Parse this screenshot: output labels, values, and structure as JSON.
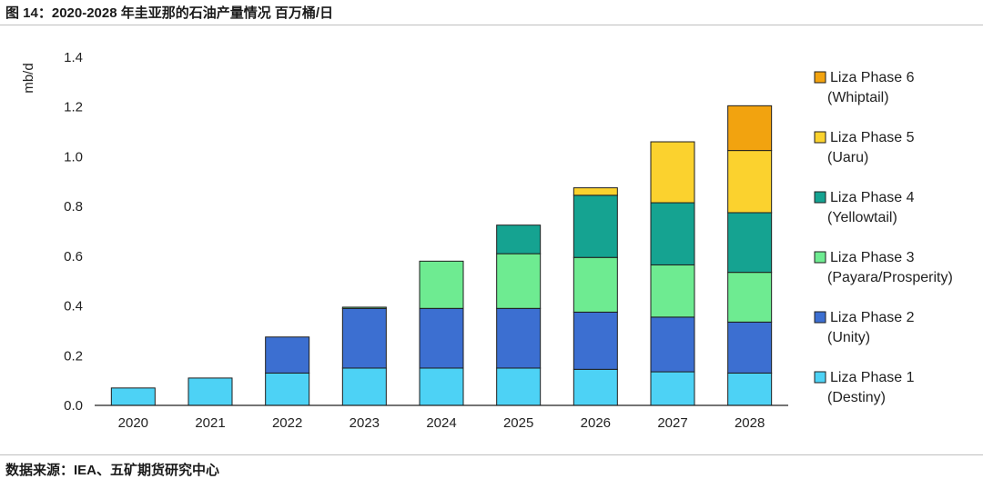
{
  "figure": {
    "title": "图 14：2020-2028 年圭亚那的石油产量情况 百万桶/日",
    "source": "数据来源：IEA、五矿期货研究中心"
  },
  "chart_data": {
    "type": "bar",
    "stacked": true,
    "ylabel": "mb/d",
    "ylim": [
      0,
      1.4
    ],
    "yticks": [
      "0.0",
      "0.2",
      "0.4",
      "0.6",
      "0.8",
      "1.0",
      "1.2",
      "1.4"
    ],
    "categories": [
      "2020",
      "2021",
      "2022",
      "2023",
      "2024",
      "2025",
      "2026",
      "2027",
      "2028"
    ],
    "legend_position": "right",
    "grid": false,
    "series": [
      {
        "name": "Liza Phase 1",
        "sub": "(Destiny)",
        "color": "#4DD2F5",
        "values": [
          0.07,
          0.11,
          0.13,
          0.15,
          0.15,
          0.15,
          0.145,
          0.135,
          0.13
        ]
      },
      {
        "name": "Liza Phase 2",
        "sub": "(Unity)",
        "color": "#3C6FD1",
        "values": [
          0,
          0,
          0.145,
          0.24,
          0.24,
          0.24,
          0.23,
          0.22,
          0.205
        ]
      },
      {
        "name": "Liza Phase 3",
        "sub": "(Payara/Prosperity)",
        "color": "#6EEB91",
        "values": [
          0,
          0,
          0,
          0.005,
          0.19,
          0.22,
          0.22,
          0.21,
          0.2
        ]
      },
      {
        "name": "Liza Phase 4",
        "sub": "(Yellowtail)",
        "color": "#15A391",
        "values": [
          0,
          0,
          0,
          0,
          0,
          0.115,
          0.25,
          0.25,
          0.24
        ]
      },
      {
        "name": "Liza Phase 5",
        "sub": "(Uaru)",
        "color": "#FBD22E",
        "values": [
          0,
          0,
          0,
          0,
          0,
          0,
          0.03,
          0.245,
          0.25
        ]
      },
      {
        "name": "Liza Phase 6",
        "sub": "(Whiptail)",
        "color": "#F2A30F",
        "values": [
          0,
          0,
          0,
          0,
          0,
          0,
          0,
          0,
          0.18
        ]
      }
    ]
  }
}
